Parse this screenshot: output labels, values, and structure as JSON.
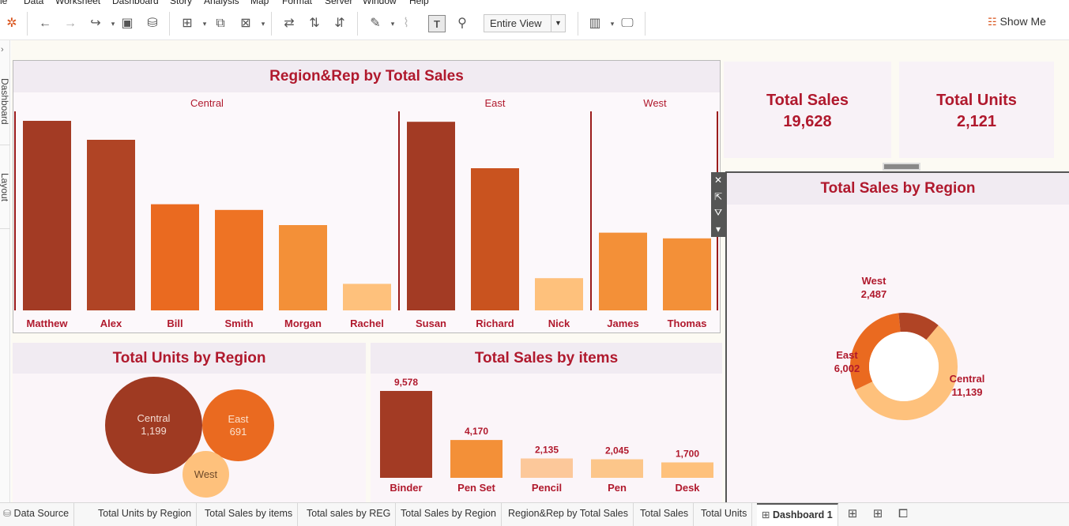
{
  "menu": [
    "le",
    "Data",
    "Worksheet",
    "Dashboard",
    "Story",
    "Analysis",
    "Map",
    "Format",
    "Server",
    "Window",
    "Help"
  ],
  "toolbar": {
    "view_select": "Entire View",
    "show_me": "Show Me"
  },
  "left_rail": {
    "dashboard_label": "Dashboard",
    "layout_label": "Layout"
  },
  "colors": {
    "title_red": "#b0192d",
    "dark_rust": "#9f3a22",
    "rust": "#b8472a",
    "orange": "#ea6a20",
    "light_orange": "#f39038",
    "pale_orange": "#fec17c"
  },
  "rep_chart": {
    "title": "Region&Rep by Total Sales",
    "regions": [
      {
        "name": "Central",
        "reps": [
          {
            "name": "Matthew",
            "value": 100,
            "color": "#a33b24"
          },
          {
            "name": "Alex",
            "value": 90,
            "color": "#b04425"
          },
          {
            "name": "Bill",
            "value": 56,
            "color": "#ea6a20"
          },
          {
            "name": "Smith",
            "value": 53,
            "color": "#ee7324"
          },
          {
            "name": "Morgan",
            "value": 45,
            "color": "#f39038"
          },
          {
            "name": "Rachel",
            "value": 14,
            "color": "#fec17c"
          }
        ]
      },
      {
        "name": "East",
        "reps": [
          {
            "name": "Susan",
            "value": 99.5,
            "color": "#a33b24"
          },
          {
            "name": "Richard",
            "value": 75,
            "color": "#c9531f"
          },
          {
            "name": "Nick",
            "value": 17,
            "color": "#fec17c"
          }
        ]
      },
      {
        "name": "West",
        "reps": [
          {
            "name": "James",
            "value": 41,
            "color": "#f39038"
          },
          {
            "name": "Thomas",
            "value": 38,
            "color": "#f39038"
          }
        ]
      }
    ]
  },
  "kpis": [
    {
      "label": "Total Sales",
      "value": "19,628"
    },
    {
      "label": "Total Units",
      "value": "2,121"
    }
  ],
  "units_by_region": {
    "title": "Total Units by Region",
    "bubbles": [
      {
        "region": "Central",
        "value": "1,199",
        "color": "#9f3a22"
      },
      {
        "region": "East",
        "value": "691",
        "color": "#ea6a20"
      },
      {
        "region": "West",
        "value": "",
        "color": "#fec17c"
      }
    ]
  },
  "sales_by_items": {
    "title": "Total Sales by items",
    "items": [
      {
        "name": "Binder",
        "value": 9578,
        "label": "9,578",
        "color": "#a33b24"
      },
      {
        "name": "Pen Set",
        "value": 4170,
        "label": "4,170",
        "color": "#f39038"
      },
      {
        "name": "Pencil",
        "value": 2135,
        "label": "2,135",
        "color": "#fcc89a"
      },
      {
        "name": "Pen",
        "value": 2045,
        "label": "2,045",
        "color": "#fcc68a"
      },
      {
        "name": "Desk",
        "value": 1700,
        "label": "1,700",
        "color": "#fec17c"
      }
    ]
  },
  "sales_by_region": {
    "title": "Total Sales by Region",
    "slices": [
      {
        "region": "Central",
        "value": 11139,
        "label": "11,139",
        "color": "#fec17c"
      },
      {
        "region": "East",
        "value": 6002,
        "label": "6,002",
        "color": "#ea6a20"
      },
      {
        "region": "West",
        "value": 2487,
        "label": "2,487",
        "color": "#b04425"
      }
    ]
  },
  "chart_data": [
    {
      "type": "bar",
      "title": "Region&Rep by Total Sales",
      "categories": [
        "Matthew",
        "Alex",
        "Bill",
        "Smith",
        "Morgan",
        "Rachel",
        "Susan",
        "Richard",
        "Nick",
        "James",
        "Thomas"
      ],
      "groups": [
        "Central",
        "Central",
        "Central",
        "Central",
        "Central",
        "Central",
        "East",
        "East",
        "East",
        "West",
        "West"
      ],
      "values": [
        100,
        90,
        56,
        53,
        45,
        14,
        99.5,
        75,
        17,
        41,
        38
      ]
    },
    {
      "type": "bar",
      "title": "Total Sales by items",
      "categories": [
        "Binder",
        "Pen Set",
        "Pencil",
        "Pen",
        "Desk"
      ],
      "values": [
        9578,
        4170,
        2135,
        2045,
        1700
      ]
    },
    {
      "type": "pie",
      "title": "Total Sales by Region",
      "categories": [
        "Central",
        "East",
        "West"
      ],
      "values": [
        11139,
        6002,
        2487
      ]
    }
  ],
  "tabs": [
    {
      "label": "Data Source",
      "active": false
    },
    {
      "label": "Total Units by Region",
      "active": false
    },
    {
      "label": "Total Sales by items",
      "active": false
    },
    {
      "label": "Total sales by REG",
      "active": false
    },
    {
      "label": "Total Sales by Region",
      "active": false
    },
    {
      "label": "Region&Rep by Total Sales",
      "active": false
    },
    {
      "label": "Total Sales",
      "active": false
    },
    {
      "label": "Total Units",
      "active": false
    },
    {
      "label": "Dashboard 1",
      "active": true
    }
  ]
}
